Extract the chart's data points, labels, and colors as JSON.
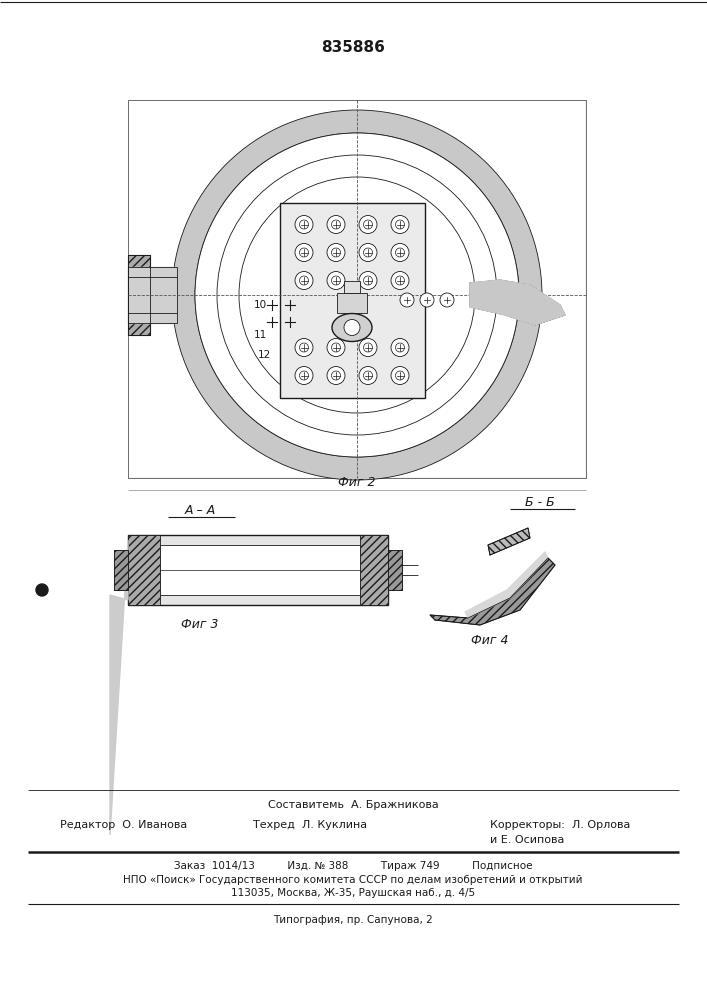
{
  "patent_number": "835886",
  "bg_color": "#ffffff",
  "line_color": "#1a1a1a",
  "fig2_label": "Фиг 2",
  "fig3_label": "Фиг 3",
  "fig4_label": "Фиг 4",
  "section_aa": "A – A",
  "section_bb": "Б - Б",
  "footer_line1_left": "Редактор  О. Иванова",
  "footer_line1_center": "Техред  Л. Куклина",
  "footer_line1_right": "Корректоры:  Л. Орлова",
  "footer_line1_right2": "и Е. Осипова",
  "footer_composer": "Составитемь  А. Бражникова",
  "footer_bottom1": "Заказ  1014/13          Изд. № 388          Тираж 749          Подписное",
  "footer_bottom2": "НПО «Поиск» Государственного комитета СССР по делам изобретений и открытий",
  "footer_bottom3": "113035, Москва, Ж-35, Раушская наб., д. 4/5",
  "footer_bottom4": "Типография, пр. Сапунова, 2"
}
